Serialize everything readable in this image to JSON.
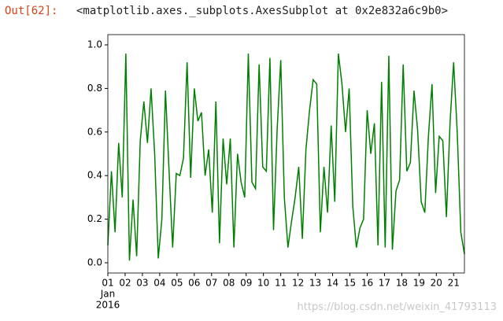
{
  "prompt": "Out[62]:",
  "output_text": "<matplotlib.axes._subplots.AxesSubplot at 0x2e832a6c9b0>",
  "watermark": "https://blog.csdn.net/weixin_41793113",
  "chart_data": {
    "type": "line",
    "color": "#008000",
    "x": [
      0,
      5,
      10,
      15,
      20,
      25,
      30,
      35,
      40,
      45,
      50,
      55,
      60,
      65,
      70,
      75,
      80,
      85,
      90,
      95,
      100,
      105,
      110,
      115,
      120,
      125,
      130,
      135,
      140,
      145,
      150,
      155,
      160,
      165,
      170,
      175,
      180,
      185,
      190,
      195,
      200,
      205,
      210,
      215,
      220,
      225,
      230,
      235,
      240,
      245,
      250,
      255,
      260,
      265,
      270,
      275,
      280,
      285,
      290,
      295,
      300,
      305,
      310,
      315,
      320,
      325,
      330,
      335,
      340,
      345,
      350,
      355,
      360,
      365,
      370,
      375,
      380,
      385,
      390,
      395,
      400,
      405,
      410,
      415,
      420,
      425,
      430,
      435,
      440,
      445,
      450,
      455,
      460,
      465,
      470,
      475,
      480,
      485,
      490,
      495
    ],
    "values": [
      0.08,
      0.42,
      0.14,
      0.55,
      0.3,
      0.96,
      0.01,
      0.29,
      0.03,
      0.56,
      0.74,
      0.55,
      0.8,
      0.5,
      0.02,
      0.2,
      0.79,
      0.42,
      0.07,
      0.41,
      0.4,
      0.48,
      0.92,
      0.39,
      0.8,
      0.65,
      0.69,
      0.4,
      0.52,
      0.23,
      0.74,
      0.09,
      0.57,
      0.36,
      0.57,
      0.07,
      0.5,
      0.37,
      0.3,
      0.96,
      0.37,
      0.34,
      0.91,
      0.44,
      0.42,
      0.94,
      0.15,
      0.61,
      0.93,
      0.3,
      0.07,
      0.19,
      0.3,
      0.44,
      0.11,
      0.52,
      0.7,
      0.84,
      0.82,
      0.14,
      0.44,
      0.23,
      0.63,
      0.28,
      0.96,
      0.82,
      0.6,
      0.8,
      0.26,
      0.07,
      0.16,
      0.2,
      0.7,
      0.5,
      0.64,
      0.08,
      0.83,
      0.07,
      0.95,
      0.06,
      0.33,
      0.38,
      0.91,
      0.42,
      0.46,
      0.79,
      0.61,
      0.28,
      0.23,
      0.58,
      0.82,
      0.32,
      0.58,
      0.56,
      0.21,
      0.64,
      0.92,
      0.6,
      0.14,
      0.04
    ],
    "xlim": [
      0,
      495
    ],
    "xticks": [
      {
        "value": 0,
        "label": "01"
      },
      {
        "value": 24,
        "label": "02"
      },
      {
        "value": 48,
        "label": "03"
      },
      {
        "value": 72,
        "label": "04"
      },
      {
        "value": 96,
        "label": "05"
      },
      {
        "value": 120,
        "label": "06"
      },
      {
        "value": 144,
        "label": "07"
      },
      {
        "value": 168,
        "label": "08"
      },
      {
        "value": 192,
        "label": "09"
      },
      {
        "value": 216,
        "label": "10"
      },
      {
        "value": 240,
        "label": "11"
      },
      {
        "value": 264,
        "label": "12"
      },
      {
        "value": 288,
        "label": "13"
      },
      {
        "value": 312,
        "label": "14"
      },
      {
        "value": 336,
        "label": "15"
      },
      {
        "value": 360,
        "label": "16"
      },
      {
        "value": 384,
        "label": "17"
      },
      {
        "value": 408,
        "label": "18"
      },
      {
        "value": 432,
        "label": "19"
      },
      {
        "value": 456,
        "label": "20"
      },
      {
        "value": 480,
        "label": "21"
      }
    ],
    "x_month": "Jan",
    "x_year": "2016",
    "ylim": [
      -0.047,
      1.047
    ],
    "yticks": [
      {
        "value": 0,
        "label": "0.0"
      },
      {
        "value": 0.2,
        "label": "0.2"
      },
      {
        "value": 0.4,
        "label": "0.4"
      },
      {
        "value": 0.6,
        "label": "0.6"
      },
      {
        "value": 0.8,
        "label": "0.8"
      },
      {
        "value": 1,
        "label": "1.0"
      }
    ]
  }
}
